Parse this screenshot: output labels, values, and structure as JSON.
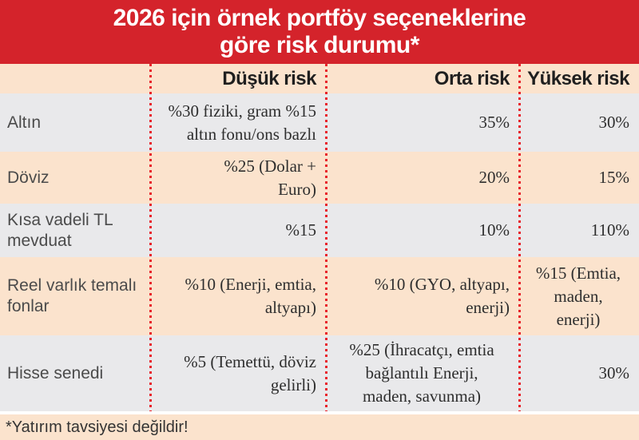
{
  "banner": {
    "title_line1": "2026 için örnek portföy seçeneklerine",
    "title_line2": "göre risk durumu*"
  },
  "table": {
    "columns": [
      "",
      "Düşük risk",
      "Orta risk",
      "Yüksek risk"
    ],
    "rows": [
      {
        "label": "Altın",
        "dusuk": "%30 fiziki, gram %15\naltın fonu/ons bazlı",
        "orta": "35%",
        "yuksek": "30%"
      },
      {
        "label": "Döviz",
        "dusuk": "%25 (Dolar +\nEuro)",
        "orta": "20%",
        "yuksek": "15%"
      },
      {
        "label": "Kısa vadeli TL\nmevduat",
        "dusuk": "%15",
        "orta": "10%",
        "yuksek": "110%"
      },
      {
        "label": "Reel varlık temalı\nfonlar",
        "dusuk": "%10 (Enerji, emtia,\naltyapı)",
        "orta": "%10 (GYO, altyapı,\nenerji)",
        "yuksek": "%15 (Emtia,\nmaden,\nenerji)"
      },
      {
        "label": "Hisse senedi",
        "dusuk": "%5 (Temettü, döviz\ngelirli)",
        "orta": "%25 (İhracatçı, emtia\nbağlantılı Enerji,\nmaden, savunma)",
        "yuksek": "30%"
      }
    ]
  },
  "footnote": {
    "text": "*Yatırım tavsiyesi değildir!"
  },
  "colors": {
    "banner_red": "#d4232b",
    "divider_red": "#e8232b",
    "row_peach": "#fbe3cd",
    "row_gray": "#e9e9eb",
    "title_white": "#ffffff",
    "value_text": "#2e2e2e",
    "label_text": "#4b4b4b"
  },
  "chart_data": {
    "type": "table",
    "title": "2026 için örnek portföy seçeneklerine göre risk durumu*",
    "columns": [
      "",
      "Düşük risk",
      "Orta risk",
      "Yüksek risk"
    ],
    "rows": [
      [
        "Altın",
        "%30 fiziki, gram %15 altın fonu/ons bazlı",
        "35%",
        "30%"
      ],
      [
        "Döviz",
        "%25 (Dolar + Euro)",
        "20%",
        "15%"
      ],
      [
        "Kısa vadeli TL mevduat",
        "%15",
        "10%",
        "110%"
      ],
      [
        "Reel varlık temalı fonlar",
        "%10 (Enerji, emtia, altyapı)",
        "%10 (GYO, altyapı, enerji)",
        "%15 (Emtia, maden, enerji)"
      ],
      [
        "Hisse senedi",
        "%5 (Temettü, döviz gelirli)",
        "%25 (İhracatçı, emtia bağlantılı Enerji, maden, savunma)",
        "30%"
      ]
    ],
    "footnote": "*Yatırım tavsiyesi değildir!"
  }
}
